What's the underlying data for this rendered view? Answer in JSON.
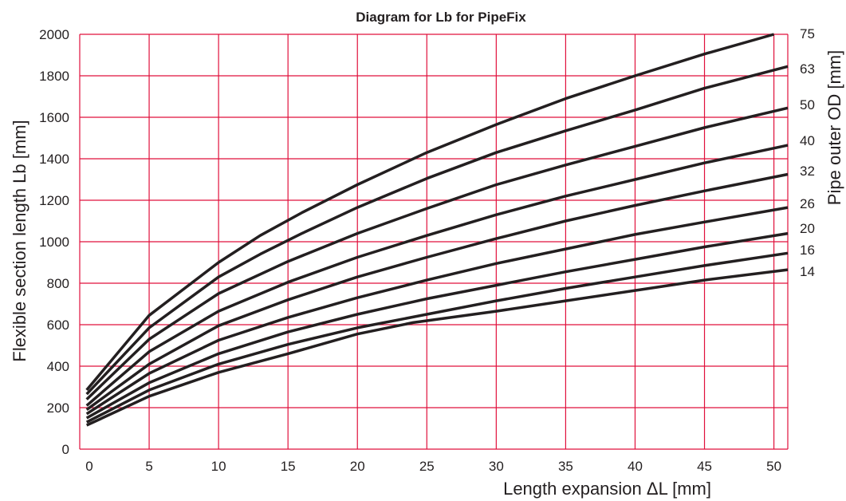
{
  "chart_data": {
    "type": "line",
    "title": "Diagram for Lb for PipeFix",
    "xlabel": "Length expansion ΔL [mm]",
    "ylabel": "Flexible section length Lb [mm]",
    "y2label": "Pipe outer OD [mm]",
    "xlim": [
      0,
      51
    ],
    "ylim": [
      0,
      2000
    ],
    "xticks": [
      0,
      5,
      10,
      15,
      20,
      25,
      30,
      35,
      40,
      45,
      50
    ],
    "yticks": [
      0,
      200,
      400,
      600,
      800,
      1000,
      1200,
      1400,
      1600,
      1800,
      2000
    ],
    "grid": true,
    "grid_color": "#e0103c",
    "line_color": "#231f20",
    "series_label_position": "right",
    "series": [
      {
        "name": "75",
        "points": [
          [
            0.5,
            285
          ],
          [
            5,
            645
          ],
          [
            10,
            900
          ],
          [
            13,
            1030
          ],
          [
            16,
            1140
          ],
          [
            20,
            1275
          ],
          [
            25,
            1430
          ],
          [
            30,
            1565
          ],
          [
            35,
            1690
          ],
          [
            40,
            1800
          ],
          [
            45,
            1905
          ],
          [
            50,
            2000
          ]
        ]
      },
      {
        "name": "63",
        "points": [
          [
            0.5,
            265
          ],
          [
            5,
            585
          ],
          [
            10,
            830
          ],
          [
            13,
            940
          ],
          [
            16,
            1040
          ],
          [
            20,
            1165
          ],
          [
            25,
            1305
          ],
          [
            30,
            1430
          ],
          [
            35,
            1535
          ],
          [
            40,
            1635
          ],
          [
            45,
            1740
          ],
          [
            51,
            1845
          ]
        ]
      },
      {
        "name": "50",
        "points": [
          [
            0.5,
            240
          ],
          [
            5,
            530
          ],
          [
            10,
            750
          ],
          [
            15,
            905
          ],
          [
            20,
            1040
          ],
          [
            25,
            1160
          ],
          [
            30,
            1275
          ],
          [
            35,
            1370
          ],
          [
            40,
            1460
          ],
          [
            45,
            1550
          ],
          [
            51,
            1645
          ]
        ]
      },
      {
        "name": "40",
        "points": [
          [
            0.5,
            210
          ],
          [
            5,
            470
          ],
          [
            10,
            665
          ],
          [
            15,
            805
          ],
          [
            20,
            925
          ],
          [
            25,
            1030
          ],
          [
            30,
            1130
          ],
          [
            35,
            1220
          ],
          [
            40,
            1300
          ],
          [
            45,
            1380
          ],
          [
            51,
            1465
          ]
        ]
      },
      {
        "name": "32",
        "points": [
          [
            0.5,
            190
          ],
          [
            5,
            410
          ],
          [
            10,
            595
          ],
          [
            15,
            720
          ],
          [
            20,
            830
          ],
          [
            25,
            925
          ],
          [
            30,
            1015
          ],
          [
            35,
            1100
          ],
          [
            40,
            1175
          ],
          [
            45,
            1245
          ],
          [
            51,
            1325
          ]
        ]
      },
      {
        "name": "26",
        "points": [
          [
            0.5,
            170
          ],
          [
            5,
            365
          ],
          [
            10,
            525
          ],
          [
            15,
            635
          ],
          [
            20,
            730
          ],
          [
            25,
            815
          ],
          [
            30,
            895
          ],
          [
            35,
            965
          ],
          [
            40,
            1035
          ],
          [
            45,
            1095
          ],
          [
            51,
            1165
          ]
        ]
      },
      {
        "name": "20",
        "points": [
          [
            0.5,
            150
          ],
          [
            5,
            320
          ],
          [
            10,
            460
          ],
          [
            15,
            565
          ],
          [
            20,
            650
          ],
          [
            25,
            725
          ],
          [
            30,
            790
          ],
          [
            35,
            855
          ],
          [
            40,
            915
          ],
          [
            45,
            975
          ],
          [
            51,
            1040
          ]
        ]
      },
      {
        "name": "16",
        "points": [
          [
            0.5,
            130
          ],
          [
            5,
            285
          ],
          [
            10,
            410
          ],
          [
            15,
            505
          ],
          [
            20,
            585
          ],
          [
            25,
            650
          ],
          [
            30,
            715
          ],
          [
            35,
            775
          ],
          [
            40,
            830
          ],
          [
            45,
            885
          ],
          [
            51,
            945
          ]
        ]
      },
      {
        "name": "14",
        "points": [
          [
            0.5,
            115
          ],
          [
            5,
            255
          ],
          [
            10,
            370
          ],
          [
            15,
            460
          ],
          [
            20,
            555
          ],
          [
            24,
            610
          ],
          [
            30,
            665
          ],
          [
            35,
            715
          ],
          [
            40,
            765
          ],
          [
            45,
            815
          ],
          [
            51,
            865
          ]
        ]
      }
    ]
  }
}
